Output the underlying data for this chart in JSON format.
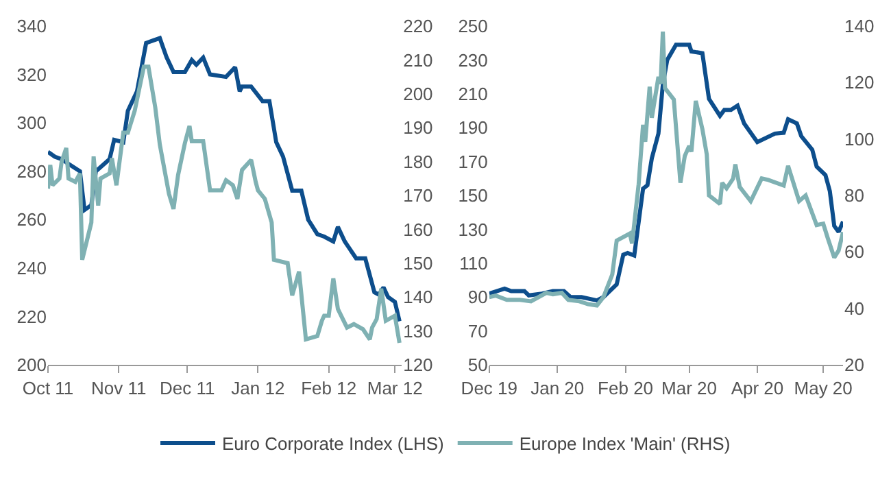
{
  "chart_data": [
    {
      "type": "line",
      "legend": "bottom",
      "xlim": [
        "2011-10-01",
        "2012-03-04"
      ],
      "xticks": [
        {
          "value": "2011-10-01",
          "label": "Oct 11"
        },
        {
          "value": "2011-11-01",
          "label": "Nov 11"
        },
        {
          "value": "2011-12-01",
          "label": "Dec 11"
        },
        {
          "value": "2012-01-01",
          "label": "Jan 12"
        },
        {
          "value": "2012-02-01",
          "label": "Feb 12"
        },
        {
          "value": "2012-03-01",
          "label": "Mar 12"
        }
      ],
      "ylim": [
        200,
        340
      ],
      "yticks": [
        200,
        220,
        240,
        260,
        280,
        300,
        320,
        340
      ],
      "y2lim": [
        120,
        220
      ],
      "y2ticks": [
        120,
        130,
        140,
        150,
        160,
        170,
        180,
        190,
        200,
        210,
        220
      ],
      "series": [
        {
          "name": "Euro Corporate Index (LHS)",
          "color": "#0d4e8c",
          "axis": "y",
          "x": [
            "2011-10-01",
            "2011-10-04",
            "2011-10-07",
            "2011-10-10",
            "2011-10-15",
            "2011-10-17",
            "2011-10-20",
            "2011-10-22",
            "2011-10-28",
            "2011-10-30",
            "2011-11-03",
            "2011-11-05",
            "2011-11-09",
            "2011-11-13",
            "2011-11-16",
            "2011-11-19",
            "2011-11-22",
            "2011-11-25",
            "2011-11-30",
            "2011-12-03",
            "2011-12-05",
            "2011-12-08",
            "2011-12-11",
            "2011-12-18",
            "2011-12-22",
            "2011-12-24",
            "2011-12-25",
            "2011-12-29",
            "2012-01-03",
            "2012-01-06",
            "2012-01-09",
            "2012-01-12",
            "2012-01-16",
            "2012-01-20",
            "2012-01-23",
            "2012-01-27",
            "2012-01-30",
            "2012-02-03",
            "2012-02-05",
            "2012-02-08",
            "2012-02-13",
            "2012-02-17",
            "2012-02-21",
            "2012-02-23",
            "2012-02-25",
            "2012-02-27",
            "2012-03-01",
            "2012-03-03"
          ],
          "values": [
            288,
            286,
            285,
            283,
            280,
            264,
            266,
            280,
            285,
            293,
            292,
            305,
            313,
            333,
            334,
            335,
            327,
            321,
            321,
            326,
            324,
            327,
            320,
            319,
            323,
            313,
            315,
            315,
            309,
            309,
            292,
            286,
            272,
            272,
            260,
            254,
            253,
            251,
            257,
            251,
            244,
            244,
            230,
            229,
            232,
            228,
            226,
            218
          ]
        },
        {
          "name": "Europe Index 'Main' (RHS)",
          "color": "#7fb1b3",
          "axis": "y2",
          "x": [
            "2011-10-01",
            "2011-10-02",
            "2011-10-03",
            "2011-10-06",
            "2011-10-07",
            "2011-10-09",
            "2011-10-10",
            "2011-10-13",
            "2011-10-15",
            "2011-10-16",
            "2011-10-20",
            "2011-10-21",
            "2011-10-23",
            "2011-10-24",
            "2011-10-28",
            "2011-10-29",
            "2011-10-31",
            "2011-11-03",
            "2011-11-05",
            "2011-11-08",
            "2011-11-12",
            "2011-11-14",
            "2011-11-17",
            "2011-11-19",
            "2011-11-23",
            "2011-11-25",
            "2011-11-27",
            "2011-11-30",
            "2011-12-02",
            "2011-12-03",
            "2011-12-08",
            "2011-12-11",
            "2011-12-16",
            "2011-12-18",
            "2011-12-21",
            "2011-12-23",
            "2011-12-25",
            "2011-12-29",
            "2011-12-31",
            "2012-01-01",
            "2012-01-04",
            "2012-01-07",
            "2012-01-08",
            "2012-01-14",
            "2012-01-16",
            "2012-01-19",
            "2012-01-22",
            "2012-01-27",
            "2012-01-29",
            "2012-01-30",
            "2012-02-01",
            "2012-02-03",
            "2012-02-05",
            "2012-02-09",
            "2012-02-12",
            "2012-02-16",
            "2012-02-19",
            "2012-02-20",
            "2012-02-22",
            "2012-02-24",
            "2012-02-26",
            "2012-03-01",
            "2012-03-03"
          ],
          "values": [
            172,
            179,
            173,
            175,
            180,
            184,
            175,
            174,
            176.5,
            151,
            162,
            181.5,
            167,
            175,
            176.5,
            181,
            173,
            188.5,
            188.5,
            195,
            208,
            208,
            196,
            185,
            170.5,
            166,
            176,
            185.5,
            190.5,
            186,
            186,
            171.5,
            171.5,
            174.5,
            173,
            169,
            177.5,
            180.5,
            174,
            171.5,
            169,
            162,
            151,
            150,
            140.5,
            147.5,
            127.5,
            128.5,
            133,
            134.5,
            134.5,
            145.5,
            136.5,
            131,
            132,
            130.5,
            127.5,
            131,
            133.5,
            142.5,
            133,
            134.5,
            126.5
          ]
        }
      ]
    },
    {
      "type": "line",
      "xlim": [
        "2019-12-01",
        "2020-05-10"
      ],
      "xticks": [
        {
          "value": "2019-12-01",
          "label": "Dec 19"
        },
        {
          "value": "2020-01-01",
          "label": "Jan 20"
        },
        {
          "value": "2020-02-01",
          "label": "Feb 20"
        },
        {
          "value": "2020-03-01",
          "label": "Mar 20"
        },
        {
          "value": "2020-04-01",
          "label": "Apr 20"
        },
        {
          "value": "2020-05-01",
          "label": "May 20"
        }
      ],
      "ylim": [
        50,
        250
      ],
      "yticks": [
        50,
        70,
        90,
        110,
        130,
        150,
        170,
        190,
        210,
        230,
        250
      ],
      "y2lim": [
        20,
        140
      ],
      "y2ticks": [
        20,
        40,
        60,
        80,
        100,
        120,
        140
      ],
      "series": [
        {
          "color": "#0d4e8c",
          "axis": "y",
          "x": [
            "2019-12-01",
            "2019-12-08",
            "2019-12-11",
            "2019-12-17",
            "2019-12-19",
            "2019-12-25",
            "2019-12-30",
            "2020-01-04",
            "2020-01-07",
            "2020-01-12",
            "2020-01-19",
            "2020-01-22",
            "2020-01-28",
            "2020-01-31",
            "2020-02-02",
            "2020-02-05",
            "2020-02-09",
            "2020-02-11",
            "2020-02-13",
            "2020-02-16",
            "2020-02-18",
            "2020-02-20",
            "2020-02-24",
            "2020-03-01",
            "2020-03-02",
            "2020-03-07",
            "2020-03-10",
            "2020-03-15",
            "2020-03-17",
            "2020-03-20",
            "2020-03-23",
            "2020-03-26",
            "2020-04-01",
            "2020-04-09",
            "2020-04-13",
            "2020-04-15",
            "2020-04-19",
            "2020-04-21",
            "2020-04-26",
            "2020-04-28",
            "2020-05-02",
            "2020-05-04",
            "2020-05-06",
            "2020-05-08",
            "2020-05-10"
          ],
          "values": [
            92,
            95,
            93.5,
            93.5,
            91,
            92,
            93.5,
            93.5,
            90,
            90,
            88,
            90,
            97.5,
            115,
            116,
            114.5,
            154,
            156,
            172,
            186.5,
            215.5,
            230,
            239,
            239,
            235,
            234,
            207,
            197,
            200.5,
            200.5,
            203,
            192.5,
            181.5,
            186.5,
            187,
            195,
            192.5,
            185,
            177,
            167,
            162,
            152.5,
            132,
            128.5,
            134.5
          ]
        },
        {
          "color": "#7fb1b3",
          "axis": "y2",
          "x": [
            "2019-12-01",
            "2019-12-04",
            "2019-12-09",
            "2019-12-15",
            "2019-12-20",
            "2019-12-27",
            "2019-12-30",
            "2020-01-03",
            "2020-01-06",
            "2020-01-11",
            "2020-01-15",
            "2020-01-19",
            "2020-01-22",
            "2020-01-26",
            "2020-01-28",
            "2020-02-03",
            "2020-02-04",
            "2020-02-07",
            "2020-02-09",
            "2020-02-10",
            "2020-02-12",
            "2020-02-13",
            "2020-02-16",
            "2020-02-17",
            "2020-02-18",
            "2020-02-19",
            "2020-02-23",
            "2020-02-26",
            "2020-02-28",
            "2020-03-01",
            "2020-03-02",
            "2020-03-04",
            "2020-03-07",
            "2020-03-09",
            "2020-03-10",
            "2020-03-15",
            "2020-03-16",
            "2020-03-18",
            "2020-03-21",
            "2020-03-22",
            "2020-03-24",
            "2020-03-29",
            "2020-04-03",
            "2020-04-06",
            "2020-04-13",
            "2020-04-15",
            "2020-04-20",
            "2020-04-23",
            "2020-04-28",
            "2020-05-01",
            "2020-05-03",
            "2020-05-06",
            "2020-05-08",
            "2020-05-10"
          ],
          "values": [
            44,
            44.5,
            43,
            43,
            42.5,
            45.5,
            45,
            45.5,
            43,
            42.5,
            41.5,
            41,
            44,
            52,
            64,
            66.5,
            63,
            84,
            105,
            99,
            118.5,
            107.5,
            122,
            119.5,
            138,
            118,
            114,
            84.5,
            94,
            97.5,
            95.5,
            113.5,
            103.5,
            94.5,
            80,
            77,
            84.5,
            82.5,
            86,
            91,
            83,
            78,
            86,
            85.5,
            83.5,
            90.5,
            78,
            80,
            69.5,
            70,
            65,
            58,
            60.5,
            67
          ]
        }
      ]
    }
  ]
}
